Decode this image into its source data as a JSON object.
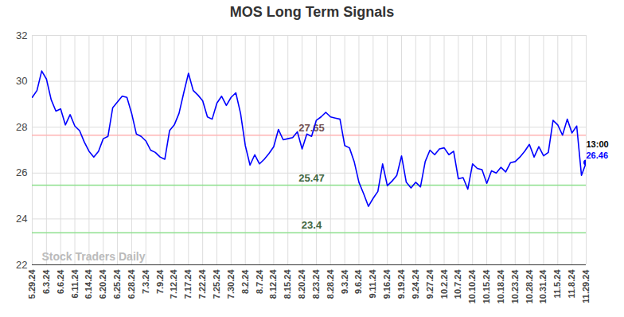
{
  "chart_data": {
    "type": "line",
    "title": "MOS Long Term Signals",
    "watermark": "Stock Traders Daily",
    "color": "#0000ff",
    "categories": [
      "5.29.24",
      null,
      null,
      "6.3.24",
      null,
      null,
      "6.6.24",
      null,
      null,
      "6.11.24",
      null,
      null,
      "6.14.24",
      null,
      null,
      "6.20.24",
      null,
      null,
      "6.25.24",
      null,
      null,
      "6.28.24",
      null,
      null,
      "7.3.24",
      null,
      null,
      "7.9.24",
      null,
      null,
      "7.12.24",
      null,
      null,
      "7.17.24",
      null,
      null,
      "7.22.24",
      null,
      null,
      "7.25.24",
      null,
      null,
      "7.30.24",
      null,
      null,
      "8.2.24",
      null,
      null,
      "8.7.24",
      null,
      null,
      "8.12.24",
      null,
      null,
      "8.15.24",
      null,
      null,
      "8.20.24",
      null,
      null,
      "8.23.24",
      null,
      null,
      "8.28.24",
      null,
      null,
      "9.3.24",
      null,
      null,
      "9.6.24",
      null,
      null,
      "9.11.24",
      null,
      null,
      "9.16.24",
      null,
      null,
      "9.19.24",
      null,
      null,
      "9.24.24",
      null,
      null,
      "9.27.24",
      null,
      null,
      "10.2.24",
      null,
      null,
      "10.7.24",
      null,
      null,
      "10.10.24",
      null,
      null,
      "10.15.24",
      null,
      null,
      "10.18.24",
      null,
      null,
      "10.23.24",
      null,
      null,
      "10.28.24",
      null,
      null,
      "10.31.24",
      null,
      null,
      "11.5.24",
      null,
      null,
      "11.8.24",
      null,
      null,
      "11.29.24"
    ],
    "values": [
      29.3,
      29.6,
      30.45,
      30.1,
      29.2,
      28.7,
      28.8,
      28.1,
      28.55,
      28.05,
      27.85,
      27.35,
      26.95,
      26.7,
      26.95,
      27.5,
      27.6,
      28.85,
      29.1,
      29.35,
      29.3,
      28.6,
      27.7,
      27.6,
      27.4,
      27.0,
      26.9,
      26.7,
      26.6,
      27.85,
      28.1,
      28.6,
      29.5,
      30.35,
      29.6,
      29.4,
      29.15,
      28.45,
      28.35,
      29.05,
      29.35,
      28.95,
      29.3,
      29.5,
      28.6,
      27.2,
      26.35,
      26.8,
      26.4,
      26.6,
      26.85,
      27.15,
      27.9,
      27.45,
      27.5,
      27.55,
      27.8,
      27.05,
      27.7,
      27.6,
      28.3,
      28.45,
      28.65,
      28.45,
      28.4,
      28.35,
      27.2,
      27.1,
      26.5,
      25.6,
      25.1,
      24.55,
      24.9,
      25.2,
      26.4,
      25.45,
      25.65,
      25.9,
      26.75,
      25.6,
      25.35,
      25.6,
      25.4,
      26.5,
      27.0,
      26.8,
      27.05,
      27.1,
      26.8,
      26.95,
      25.75,
      25.8,
      25.3,
      26.4,
      26.2,
      26.15,
      25.55,
      26.1,
      26.0,
      26.25,
      26.05,
      26.45,
      26.5,
      26.7,
      26.95,
      27.25,
      26.7,
      27.15,
      26.75,
      26.9,
      28.3,
      28.1,
      27.65,
      28.35,
      27.75,
      28.05,
      25.9,
      26.46
    ],
    "reference_lines": [
      {
        "value": 27.65,
        "color": "#ffb3b3"
      },
      {
        "value": 25.47,
        "color": "#8fe08f"
      },
      {
        "value": 23.4,
        "color": "#8fe08f"
      }
    ],
    "last_point": {
      "time_label": "13:00"
    },
    "ylim": [
      22,
      32
    ],
    "yticks": [
      22,
      24,
      26,
      28,
      30,
      32
    ],
    "grid": true
  }
}
